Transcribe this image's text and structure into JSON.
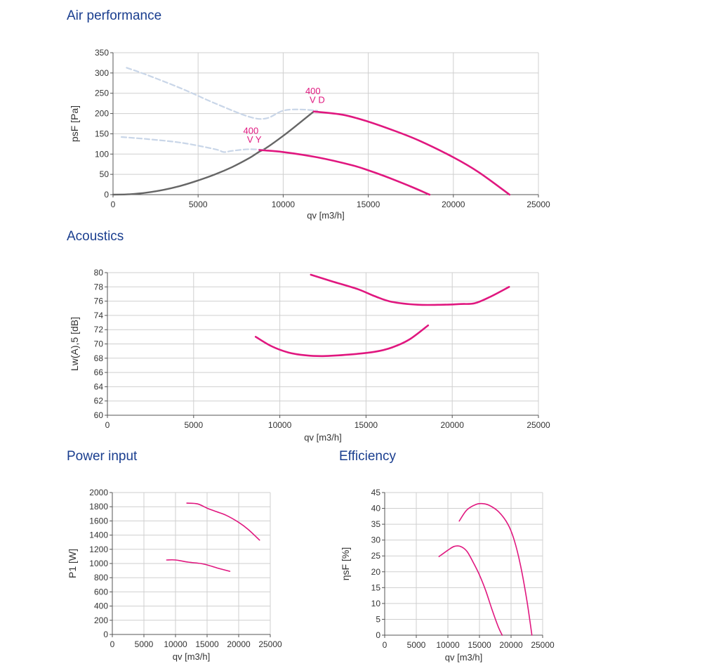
{
  "sections": {
    "air": "Air performance",
    "acoustics": "Acoustics",
    "power": "Power input",
    "efficiency": "Efficiency"
  },
  "colors": {
    "accent": "#e0177f",
    "operating_line": "#666666",
    "limit_line": "#c9d6e8",
    "grid": "#cfcfcf",
    "title": "#1a3e8f"
  },
  "chart_data": [
    {
      "id": "air",
      "type": "line",
      "title": "Air performance",
      "xlabel": "qv [m3/h]",
      "ylabel": "psF [Pa]",
      "xlim": [
        0,
        25000
      ],
      "ylim": [
        0,
        350
      ],
      "xticks": [
        0,
        5000,
        10000,
        15000,
        20000,
        25000
      ],
      "yticks": [
        0,
        50,
        100,
        150,
        200,
        250,
        300,
        350
      ],
      "grid": true,
      "annotations": [
        {
          "text": "400",
          "x": 11750,
          "y": 248
        },
        {
          "text": "V D",
          "x": 12000,
          "y": 226
        },
        {
          "text": "400",
          "x": 8100,
          "y": 150
        },
        {
          "text": "V Y",
          "x": 8300,
          "y": 128
        }
      ],
      "series": [
        {
          "style": "operating",
          "x": [
            0,
            1000,
            2000,
            3000,
            4000,
            5000,
            6000,
            7000,
            8000,
            8600,
            9000,
            10000,
            11000,
            11800
          ],
          "y": [
            0,
            1,
            5,
            12,
            22,
            35,
            50,
            68,
            90,
            106,
            115,
            145,
            178,
            205
          ]
        },
        {
          "style": "limit",
          "x": [
            800,
            2000,
            4000,
            6000,
            8000,
            9000,
            10000,
            11000,
            12000
          ],
          "y": [
            313,
            295,
            262,
            225,
            192,
            188,
            207,
            210,
            207
          ]
        },
        {
          "style": "limit",
          "x": [
            500,
            2000,
            4000,
            6000,
            6500,
            7000,
            8000,
            9000
          ],
          "y": [
            142,
            137,
            128,
            112,
            105,
            108,
            112,
            110
          ]
        },
        {
          "style": "curve",
          "x": [
            11800,
            13500,
            15000,
            16500,
            18000,
            20000,
            21500,
            23300
          ],
          "y": [
            205,
            197,
            180,
            158,
            133,
            92,
            55,
            0
          ]
        },
        {
          "style": "curve",
          "x": [
            8600,
            10000,
            12000,
            14000,
            15000,
            16000,
            17500,
            18600
          ],
          "y": [
            110,
            105,
            92,
            73,
            60,
            45,
            20,
            0
          ]
        }
      ]
    },
    {
      "id": "acoustics",
      "type": "line",
      "title": "Acoustics",
      "xlabel": "qv [m3/h]",
      "ylabel": "Lw(A),5 [dB]",
      "xlim": [
        0,
        25000
      ],
      "ylim": [
        60,
        80
      ],
      "xticks": [
        0,
        5000,
        10000,
        15000,
        20000,
        25000
      ],
      "yticks": [
        60,
        62,
        64,
        66,
        68,
        70,
        72,
        74,
        76,
        78,
        80
      ],
      "grid": true,
      "series": [
        {
          "style": "curve",
          "x": [
            11800,
            13000,
            14500,
            15500,
            16500,
            18000,
            19500,
            20500,
            21300,
            22200,
            23300
          ],
          "y": [
            79.7,
            78.8,
            77.7,
            76.7,
            75.9,
            75.5,
            75.5,
            75.6,
            75.7,
            76.6,
            78.0
          ]
        },
        {
          "style": "curve",
          "x": [
            8600,
            9500,
            10500,
            11500,
            12500,
            14000,
            15500,
            16500,
            17500,
            18600
          ],
          "y": [
            71.0,
            69.7,
            68.8,
            68.4,
            68.3,
            68.5,
            68.9,
            69.5,
            70.6,
            72.6
          ]
        }
      ]
    },
    {
      "id": "power",
      "type": "line",
      "title": "Power input",
      "xlabel": "qv [m3/h]",
      "ylabel": "P1 [W]",
      "xlim": [
        0,
        25000
      ],
      "ylim": [
        0,
        2000
      ],
      "xticks": [
        0,
        5000,
        10000,
        15000,
        20000,
        25000
      ],
      "yticks": [
        0,
        200,
        400,
        600,
        800,
        1000,
        1200,
        1400,
        1600,
        1800,
        2000
      ],
      "grid": true,
      "series": [
        {
          "style": "curve",
          "x": [
            11800,
            13500,
            15000,
            16500,
            18000,
            20000,
            21500,
            23300
          ],
          "y": [
            1850,
            1840,
            1780,
            1730,
            1680,
            1580,
            1480,
            1330
          ]
        },
        {
          "style": "curve",
          "x": [
            8600,
            10000,
            12000,
            14000,
            15000,
            16500,
            18600
          ],
          "y": [
            1050,
            1050,
            1020,
            1000,
            980,
            940,
            890
          ]
        }
      ]
    },
    {
      "id": "efficiency",
      "type": "line",
      "title": "Efficiency",
      "xlabel": "qv [m3/h]",
      "ylabel": "ηsF [%]",
      "xlim": [
        0,
        25000
      ],
      "ylim": [
        0,
        45
      ],
      "xticks": [
        0,
        5000,
        10000,
        15000,
        20000,
        25000
      ],
      "yticks": [
        0,
        5,
        10,
        15,
        20,
        25,
        30,
        35,
        40,
        45
      ],
      "grid": true,
      "series": [
        {
          "style": "curve",
          "x": [
            11800,
            13000,
            14500,
            15500,
            16500,
            18000,
            19500,
            20500,
            21500,
            22500,
            23300
          ],
          "y": [
            36,
            39.5,
            41.3,
            41.5,
            41,
            39,
            35,
            30,
            22,
            11,
            0
          ]
        },
        {
          "style": "curve",
          "x": [
            8600,
            10000,
            11000,
            12000,
            13000,
            14000,
            15000,
            16000,
            17000,
            18000,
            18600
          ],
          "y": [
            24.8,
            26.8,
            28,
            28,
            26.5,
            23,
            19,
            14,
            8,
            2.5,
            0
          ]
        }
      ]
    }
  ]
}
